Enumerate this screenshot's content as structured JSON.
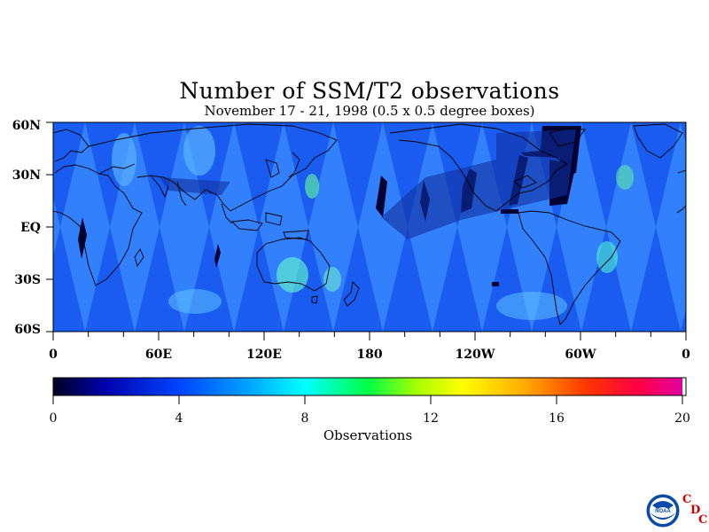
{
  "map": {
    "title": "Number of SSM/T2 observations",
    "subtitle": "November 17 - 21, 1998 (0.5 x 0.5 degree boxes)",
    "lat_labels": [
      "60N",
      "30N",
      "EQ",
      "30S",
      "60S"
    ],
    "lon_labels": [
      "0",
      "60E",
      "120E",
      "180",
      "120W",
      "60W",
      "0"
    ],
    "colorbar": {
      "tick_labels": [
        "0",
        "4",
        "8",
        "12",
        "16",
        "20"
      ],
      "label": "Observations",
      "min": 0,
      "max": 20,
      "colors": [
        "#000033",
        "#0000cc",
        "#0066ff",
        "#00ccff",
        "#00ffff",
        "#00ff66",
        "#66ff00",
        "#ffff00",
        "#ffcc00",
        "#ff8800",
        "#ff3300",
        "#ff0033",
        "#ee0099"
      ]
    },
    "logo": {
      "icon": "noaa-logo-icon",
      "letters": [
        "C",
        "D",
        "C"
      ]
    }
  }
}
